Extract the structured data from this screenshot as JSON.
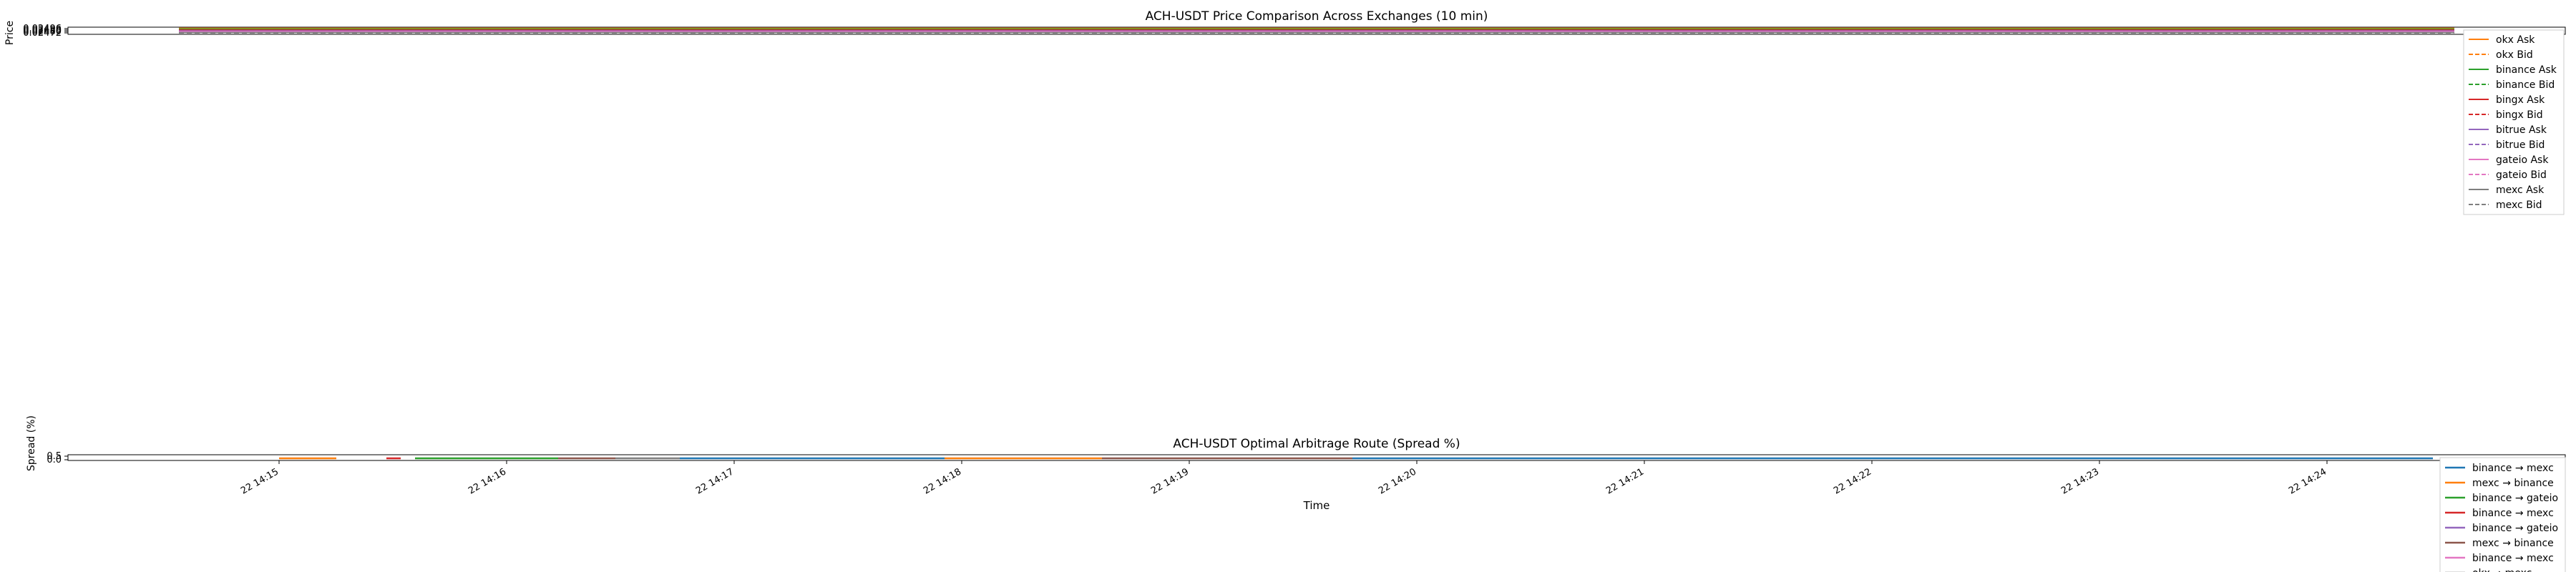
{
  "chart_data": [
    {
      "type": "line",
      "title": "ACH-USDT Price Comparison Across Exchanges (10 min)",
      "ylabel": "Price",
      "xlabel": "",
      "ytick_labels": [
        "0.02472",
        "0.02480",
        "0.02488",
        "0.02496"
      ],
      "grid": true,
      "legend_position": "right",
      "series": [
        {
          "name": "okx Ask",
          "color": "#ff7f0e",
          "dash": "solid"
        },
        {
          "name": "okx Bid",
          "color": "#ff7f0e",
          "dash": "dashed"
        },
        {
          "name": "binance Ask",
          "color": "#2ca02c",
          "dash": "solid"
        },
        {
          "name": "binance Bid",
          "color": "#2ca02c",
          "dash": "dashed"
        },
        {
          "name": "bingx Ask",
          "color": "#d62728",
          "dash": "solid"
        },
        {
          "name": "bingx Bid",
          "color": "#d62728",
          "dash": "dashed"
        },
        {
          "name": "bitrue Ask",
          "color": "#9467bd",
          "dash": "solid"
        },
        {
          "name": "bitrue Bid",
          "color": "#9467bd",
          "dash": "dashed"
        },
        {
          "name": "gateio Ask",
          "color": "#e377c2",
          "dash": "solid"
        },
        {
          "name": "gateio Bid",
          "color": "#e377c2",
          "dash": "dashed"
        },
        {
          "name": "mexc Ask",
          "color": "#7f7f7f",
          "dash": "solid"
        },
        {
          "name": "mexc Bid",
          "color": "#7f7f7f",
          "dash": "dashed"
        }
      ]
    },
    {
      "type": "line",
      "title": "ACH-USDT Optimal Arbitrage Route (Spread %)",
      "ylabel": "Spread (%)",
      "xlabel": "Time",
      "ytick_labels": [
        "0.0",
        "0.5"
      ],
      "xtick_labels": [
        "22 14:15",
        "22 14:16",
        "22 14:17",
        "22 14:18",
        "22 14:19",
        "22 14:20",
        "22 14:21",
        "22 14:22",
        "22 14:23",
        "22 14:24"
      ],
      "grid": true,
      "legend_position": "right",
      "series": [
        {
          "name": "binance → mexc",
          "color": "#1f77b4"
        },
        {
          "name": "mexc → binance",
          "color": "#ff7f0e"
        },
        {
          "name": "binance → gateio",
          "color": "#2ca02c"
        },
        {
          "name": "binance → mexc",
          "color": "#d62728"
        },
        {
          "name": "binance → gateio",
          "color": "#9467bd"
        },
        {
          "name": "mexc → binance",
          "color": "#8c564b"
        },
        {
          "name": "binance → mexc",
          "color": "#e377c2"
        },
        {
          "name": "okx → mexc",
          "color": "#7f7f7f"
        }
      ]
    }
  ]
}
